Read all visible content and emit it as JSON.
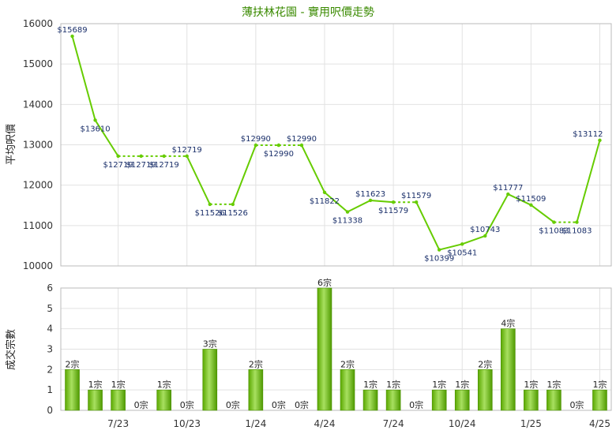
{
  "chart_data": [
    {
      "type": "line",
      "title": "薄扶林花園 - 實用呎價走勢",
      "ylabel": "平均呎價",
      "ylim": [
        10000,
        16000
      ],
      "yticks": [
        10000,
        11000,
        12000,
        13000,
        14000,
        15000,
        16000
      ],
      "grid": true,
      "series": [
        {
          "color": "#66cc00",
          "points": [
            {
              "x": 0,
              "y": 15689,
              "label": "$15689",
              "solid_to_next": true
            },
            {
              "x": 1,
              "y": 13610,
              "label": "$13610",
              "solid_to_next": true
            },
            {
              "x": 2,
              "y": 12719,
              "label": "$12719",
              "solid_to_next": false
            },
            {
              "x": 3,
              "y": 12719,
              "label": "$12719",
              "solid_to_next": false
            },
            {
              "x": 4,
              "y": 12719,
              "label": "$12719",
              "solid_to_next": false
            },
            {
              "x": 5,
              "y": 12719,
              "label": "$12719",
              "solid_to_next": true
            },
            {
              "x": 6,
              "y": 11526,
              "label": "$11526",
              "solid_to_next": false
            },
            {
              "x": 7,
              "y": 11526,
              "label": "$11526",
              "solid_to_next": true
            },
            {
              "x": 8,
              "y": 12990,
              "label": "$12990",
              "solid_to_next": false
            },
            {
              "x": 9,
              "y": 12990,
              "label": "$12990",
              "solid_to_next": false
            },
            {
              "x": 10,
              "y": 12990,
              "label": "$12990",
              "solid_to_next": true
            },
            {
              "x": 11,
              "y": 11822,
              "label": "$11822",
              "solid_to_next": true
            },
            {
              "x": 12,
              "y": 11338,
              "label": "$11338",
              "solid_to_next": true
            },
            {
              "x": 13,
              "y": 11623,
              "label": "$11623",
              "solid_to_next": true
            },
            {
              "x": 14,
              "y": 11579,
              "label": "$11579",
              "solid_to_next": false
            },
            {
              "x": 15,
              "y": 11579,
              "label": "$11579",
              "solid_to_next": true
            },
            {
              "x": 16,
              "y": 10399,
              "label": "$10399",
              "solid_to_next": true
            },
            {
              "x": 17,
              "y": 10541,
              "label": "$10541",
              "solid_to_next": true
            },
            {
              "x": 18,
              "y": 10743,
              "label": "$10743",
              "solid_to_next": true
            },
            {
              "x": 19,
              "y": 11777,
              "label": "$11777",
              "solid_to_next": true
            },
            {
              "x": 20,
              "y": 11509,
              "label": "$11509",
              "solid_to_next": true
            },
            {
              "x": 21,
              "y": 11083,
              "label": "$11083",
              "solid_to_next": false
            },
            {
              "x": 22,
              "y": 11083,
              "label": "$11083",
              "solid_to_next": true
            },
            {
              "x": 23,
              "y": 13112,
              "label": "$13112",
              "solid_to_next": false
            }
          ]
        }
      ]
    },
    {
      "type": "bar",
      "ylabel": "成交宗數",
      "ylim": [
        0,
        6
      ],
      "yticks": [
        0,
        1,
        2,
        3,
        4,
        5,
        6
      ],
      "grid": true,
      "color": "#66bb00",
      "values": [
        2,
        1,
        1,
        0,
        1,
        0,
        3,
        0,
        2,
        0,
        0,
        6,
        2,
        1,
        1,
        0,
        1,
        1,
        2,
        4,
        1,
        1,
        0,
        1
      ],
      "labels": [
        "2宗",
        "1宗",
        "1宗",
        "0宗",
        "1宗",
        "0宗",
        "3宗",
        "0宗",
        "2宗",
        "0宗",
        "0宗",
        "6宗",
        "2宗",
        "1宗",
        "1宗",
        "0宗",
        "1宗",
        "1宗",
        "2宗",
        "4宗",
        "1宗",
        "1宗",
        "0宗",
        "1宗"
      ],
      "x_ticks": [
        {
          "index": 2,
          "label": "7/23"
        },
        {
          "index": 5,
          "label": "10/23"
        },
        {
          "index": 8,
          "label": "1/24"
        },
        {
          "index": 11,
          "label": "4/24"
        },
        {
          "index": 14,
          "label": "7/24"
        },
        {
          "index": 17,
          "label": "10/24"
        },
        {
          "index": 20,
          "label": "1/25"
        },
        {
          "index": 23,
          "label": "4/25"
        }
      ]
    }
  ]
}
